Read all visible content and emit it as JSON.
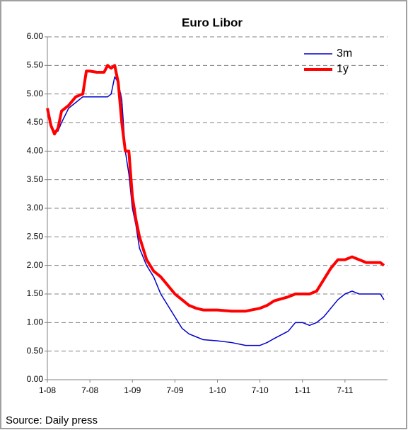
{
  "chart_data": {
    "type": "line",
    "title": "Euro Libor",
    "source": "Source: Daily press",
    "x": [
      0,
      0.5,
      1,
      1.5,
      2,
      3,
      4,
      5,
      5.5,
      6,
      7,
      8,
      8.5,
      9,
      9.5,
      10,
      10.5,
      11,
      11.5,
      12,
      12.5,
      13,
      14,
      15,
      16,
      17,
      18,
      19,
      20,
      21,
      22,
      24,
      26,
      28,
      30,
      31,
      32,
      34,
      35,
      36,
      37,
      38,
      39,
      40,
      41,
      42,
      43,
      44,
      45,
      46,
      47,
      47.5
    ],
    "series": [
      {
        "name": "3m",
        "color": "#0000cc",
        "values": [
          4.7,
          4.45,
          4.35,
          4.35,
          4.5,
          4.75,
          4.85,
          4.95,
          4.95,
          4.95,
          4.95,
          4.95,
          4.95,
          5.0,
          5.3,
          5.2,
          4.9,
          4.0,
          3.6,
          3.0,
          2.7,
          2.3,
          2.0,
          1.8,
          1.5,
          1.3,
          1.1,
          0.9,
          0.8,
          0.75,
          0.7,
          0.68,
          0.65,
          0.6,
          0.6,
          0.65,
          0.72,
          0.85,
          1.0,
          1.0,
          0.95,
          1.0,
          1.1,
          1.25,
          1.4,
          1.5,
          1.55,
          1.5,
          1.5,
          1.5,
          1.5,
          1.4
        ]
      },
      {
        "name": "1y",
        "color": "#ff0000",
        "values": [
          4.75,
          4.45,
          4.3,
          4.4,
          4.7,
          4.8,
          4.95,
          5.0,
          5.4,
          5.4,
          5.38,
          5.38,
          5.5,
          5.45,
          5.5,
          5.2,
          4.5,
          4.0,
          4.0,
          3.2,
          2.8,
          2.5,
          2.1,
          1.9,
          1.8,
          1.65,
          1.5,
          1.4,
          1.3,
          1.25,
          1.22,
          1.22,
          1.2,
          1.2,
          1.25,
          1.3,
          1.38,
          1.45,
          1.5,
          1.5,
          1.5,
          1.55,
          1.75,
          1.95,
          2.1,
          2.1,
          2.15,
          2.1,
          2.05,
          2.05,
          2.05,
          2.0
        ]
      }
    ],
    "xlim": [
      0,
      48
    ],
    "xticks": [
      {
        "value": 0,
        "label": "1-08"
      },
      {
        "value": 6,
        "label": "7-08"
      },
      {
        "value": 12,
        "label": "1-09"
      },
      {
        "value": 18,
        "label": "7-09"
      },
      {
        "value": 24,
        "label": "1-10"
      },
      {
        "value": 30,
        "label": "7-10"
      },
      {
        "value": 36,
        "label": "1-11"
      },
      {
        "value": 42,
        "label": "7-11"
      }
    ],
    "ylim": [
      0,
      6
    ],
    "yticks": [
      {
        "value": 0,
        "label": "0.00"
      },
      {
        "value": 0.5,
        "label": "0.50"
      },
      {
        "value": 1,
        "label": "1.00"
      },
      {
        "value": 1.5,
        "label": "1.50"
      },
      {
        "value": 2,
        "label": "2.00"
      },
      {
        "value": 2.5,
        "label": "2.50"
      },
      {
        "value": 3,
        "label": "3.00"
      },
      {
        "value": 3.5,
        "label": "3.50"
      },
      {
        "value": 4,
        "label": "4.00"
      },
      {
        "value": 4.5,
        "label": "4.50"
      },
      {
        "value": 5,
        "label": "5.00"
      },
      {
        "value": 5.5,
        "label": "5.50"
      },
      {
        "value": 6,
        "label": "6.00"
      }
    ],
    "grid": true,
    "legend": "top-right"
  }
}
